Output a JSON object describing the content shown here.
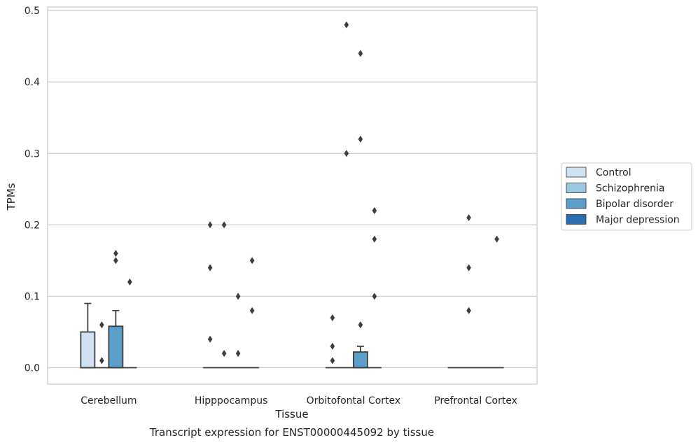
{
  "chart_data": {
    "type": "box",
    "title": "Transcript expression for ENST00000445092 by tissue",
    "xlabel": "Tissue",
    "ylabel": "TPMs",
    "ylim": [
      -0.023,
      0.505
    ],
    "yticks": [
      "0.0",
      "0.1",
      "0.2",
      "0.3",
      "0.4",
      "0.5"
    ],
    "ytick_values": [
      0.0,
      0.1,
      0.2,
      0.3,
      0.4,
      0.5
    ],
    "grid": true,
    "legend_position": "right",
    "categories": [
      "Cerebellum",
      "Hipppocampus",
      "Orbitofontal Cortex",
      "Prefrontal Cortex"
    ],
    "series": [
      {
        "name": "Control",
        "color": "#d0e1f2"
      },
      {
        "name": "Schizophrenia",
        "color": "#9ac8e0"
      },
      {
        "name": "Bipolar disorder",
        "color": "#5a9ec9"
      },
      {
        "name": "Major depression",
        "color": "#2a6fae"
      }
    ],
    "boxes": [
      {
        "category": 0,
        "series": 0,
        "q1": 0.0,
        "median": 0.0,
        "q3": 0.05,
        "whisker_low": 0.0,
        "whisker_high": 0.09
      },
      {
        "category": 0,
        "series": 1,
        "q1": 0.0,
        "median": 0.0,
        "q3": 0.0,
        "whisker_low": 0.0,
        "whisker_high": 0.0
      },
      {
        "category": 0,
        "series": 2,
        "q1": 0.0,
        "median": 0.0,
        "q3": 0.058,
        "whisker_low": 0.0,
        "whisker_high": 0.08
      },
      {
        "category": 0,
        "series": 3,
        "q1": 0.0,
        "median": 0.0,
        "q3": 0.0,
        "whisker_low": 0.0,
        "whisker_high": 0.0
      },
      {
        "category": 1,
        "series": 0,
        "q1": 0.0,
        "median": 0.0,
        "q3": 0.0,
        "whisker_low": 0.0,
        "whisker_high": 0.0
      },
      {
        "category": 1,
        "series": 1,
        "q1": 0.0,
        "median": 0.0,
        "q3": 0.0,
        "whisker_low": 0.0,
        "whisker_high": 0.0
      },
      {
        "category": 1,
        "series": 2,
        "q1": 0.0,
        "median": 0.0,
        "q3": 0.0,
        "whisker_low": 0.0,
        "whisker_high": 0.0
      },
      {
        "category": 1,
        "series": 3,
        "q1": 0.0,
        "median": 0.0,
        "q3": 0.0,
        "whisker_low": 0.0,
        "whisker_high": 0.0
      },
      {
        "category": 2,
        "series": 0,
        "q1": 0.0,
        "median": 0.0,
        "q3": 0.0,
        "whisker_low": 0.0,
        "whisker_high": 0.0
      },
      {
        "category": 2,
        "series": 1,
        "q1": 0.0,
        "median": 0.0,
        "q3": 0.0,
        "whisker_low": 0.0,
        "whisker_high": 0.0
      },
      {
        "category": 2,
        "series": 2,
        "q1": 0.0,
        "median": 0.0,
        "q3": 0.022,
        "whisker_low": 0.0,
        "whisker_high": 0.03
      },
      {
        "category": 2,
        "series": 3,
        "q1": 0.0,
        "median": 0.0,
        "q3": 0.0,
        "whisker_low": 0.0,
        "whisker_high": 0.0
      },
      {
        "category": 3,
        "series": 0,
        "q1": 0.0,
        "median": 0.0,
        "q3": 0.0,
        "whisker_low": 0.0,
        "whisker_high": 0.0
      },
      {
        "category": 3,
        "series": 1,
        "q1": 0.0,
        "median": 0.0,
        "q3": 0.0,
        "whisker_low": 0.0,
        "whisker_high": 0.0
      },
      {
        "category": 3,
        "series": 2,
        "q1": 0.0,
        "median": 0.0,
        "q3": 0.0,
        "whisker_low": 0.0,
        "whisker_high": 0.0
      },
      {
        "category": 3,
        "series": 3,
        "q1": 0.0,
        "median": 0.0,
        "q3": 0.0,
        "whisker_low": 0.0,
        "whisker_high": 0.0
      }
    ],
    "outliers": [
      {
        "category": 0,
        "series": 1,
        "values": [
          0.06,
          0.01
        ]
      },
      {
        "category": 0,
        "series": 2,
        "values": [
          0.16,
          0.15
        ]
      },
      {
        "category": 0,
        "series": 3,
        "values": [
          0.12
        ]
      },
      {
        "category": 1,
        "series": 0,
        "values": [
          0.2,
          0.14,
          0.04
        ]
      },
      {
        "category": 1,
        "series": 1,
        "values": [
          0.2,
          0.02
        ]
      },
      {
        "category": 1,
        "series": 2,
        "values": [
          0.1,
          0.02
        ]
      },
      {
        "category": 1,
        "series": 3,
        "values": [
          0.15,
          0.08
        ]
      },
      {
        "category": 2,
        "series": 0,
        "values": [
          0.07,
          0.03,
          0.01
        ]
      },
      {
        "category": 2,
        "series": 1,
        "values": [
          0.48,
          0.3
        ]
      },
      {
        "category": 2,
        "series": 2,
        "values": [
          0.44,
          0.32,
          0.06
        ]
      },
      {
        "category": 2,
        "series": 3,
        "values": [
          0.22,
          0.18,
          0.1
        ]
      },
      {
        "category": 3,
        "series": 1,
        "values": [
          0.21,
          0.14,
          0.08
        ]
      },
      {
        "category": 3,
        "series": 3,
        "values": [
          0.18
        ]
      }
    ]
  }
}
